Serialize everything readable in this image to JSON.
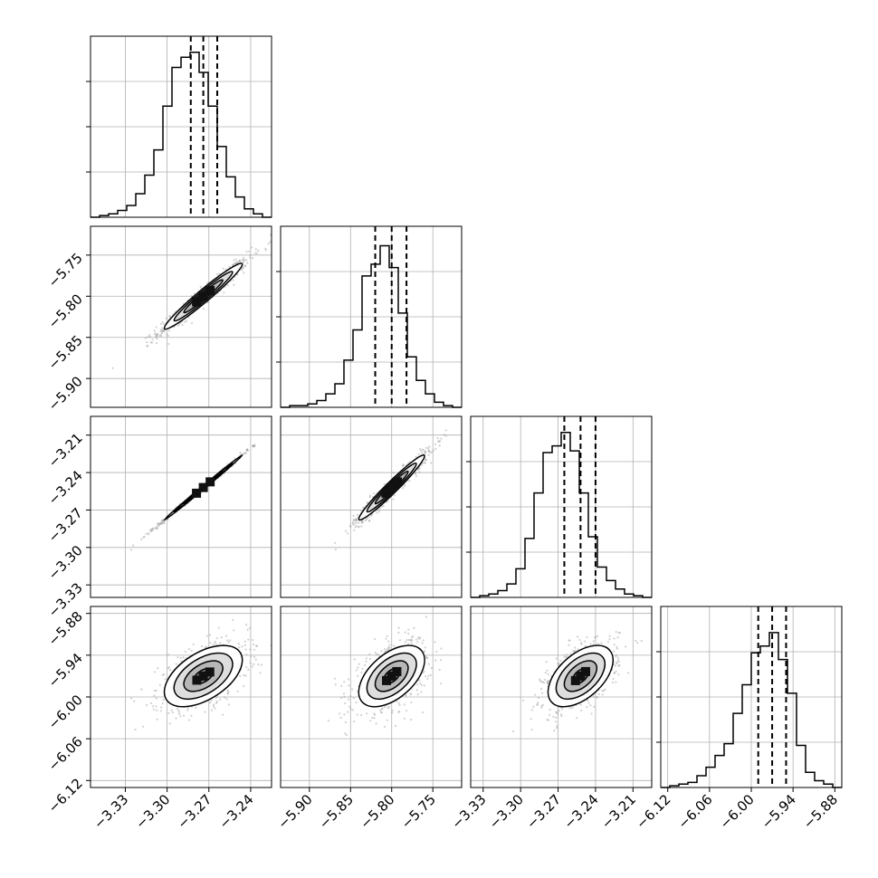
{
  "chart_data": {
    "type": "corner",
    "ylim": [
      0,
      1
    ],
    "parameters": [
      {
        "range": [
          -3.355,
          -3.225
        ],
        "ticks": [
          "−3.33",
          "−3.30",
          "−3.27",
          "−3.24"
        ],
        "tick_values": [
          -3.33,
          -3.3,
          -3.27,
          -3.24
        ],
        "quantiles": [
          -3.283,
          -3.274,
          -3.264
        ],
        "histogram": [
          0.0,
          0.01,
          0.02,
          0.04,
          0.07,
          0.14,
          0.25,
          0.4,
          0.66,
          0.89,
          0.95,
          0.98,
          0.86,
          0.66,
          0.42,
          0.24,
          0.12,
          0.05,
          0.02,
          0.0
        ]
      },
      {
        "range": [
          -5.935,
          -5.715
        ],
        "ticks": [
          "−5.90",
          "−5.85",
          "−5.80",
          "−5.75"
        ],
        "tick_values": [
          -5.9,
          -5.85,
          -5.8,
          -5.75
        ],
        "quantiles": [
          -5.82,
          -5.8,
          -5.782
        ],
        "histogram": [
          0.0,
          0.01,
          0.01,
          0.02,
          0.04,
          0.08,
          0.14,
          0.28,
          0.46,
          0.78,
          0.85,
          0.96,
          0.83,
          0.56,
          0.3,
          0.16,
          0.08,
          0.03,
          0.01,
          0.0
        ]
      },
      {
        "range": [
          -3.34,
          -3.195
        ],
        "ticks": [
          "−3.33",
          "−3.30",
          "−3.27",
          "−3.24",
          "−3.21"
        ],
        "tick_values": [
          -3.33,
          -3.3,
          -3.27,
          -3.24,
          -3.21
        ],
        "quantiles": [
          -3.265,
          -3.252,
          -3.24
        ],
        "histogram": [
          0.0,
          0.01,
          0.02,
          0.04,
          0.08,
          0.17,
          0.35,
          0.62,
          0.86,
          0.9,
          0.98,
          0.87,
          0.62,
          0.36,
          0.18,
          0.1,
          0.05,
          0.02,
          0.01,
          0.0
        ]
      },
      {
        "range": [
          -6.13,
          -5.87
        ],
        "ticks": [
          "−6.12",
          "−6.06",
          "−6.00",
          "−5.94",
          "−5.88"
        ],
        "tick_values": [
          -6.12,
          -6.06,
          -6.0,
          -5.94,
          -5.88
        ],
        "quantiles": [
          -5.99,
          -5.97,
          -5.95
        ],
        "histogram": [
          0.0,
          0.01,
          0.02,
          0.03,
          0.07,
          0.12,
          0.19,
          0.26,
          0.44,
          0.61,
          0.8,
          0.84,
          0.92,
          0.76,
          0.56,
          0.25,
          0.09,
          0.04,
          0.02,
          0.0
        ]
      }
    ],
    "pairs": [
      {
        "row": 1,
        "col": 0,
        "center": [
          -3.274,
          -5.8
        ],
        "sigma": [
          0.014,
          0.02
        ],
        "corr": 0.97
      },
      {
        "row": 2,
        "col": 0,
        "center": [
          -3.274,
          -3.252
        ],
        "sigma": [
          0.014,
          0.013
        ],
        "corr": 0.998
      },
      {
        "row": 2,
        "col": 1,
        "center": [
          -5.8,
          -3.252
        ],
        "sigma": [
          0.02,
          0.013
        ],
        "corr": 0.97
      },
      {
        "row": 3,
        "col": 0,
        "center": [
          -3.274,
          -5.97
        ],
        "sigma": [
          0.014,
          0.022
        ],
        "corr": 0.52
      },
      {
        "row": 3,
        "col": 1,
        "center": [
          -5.8,
          -5.97
        ],
        "sigma": [
          0.02,
          0.022
        ],
        "corr": 0.52
      },
      {
        "row": 3,
        "col": 2,
        "center": [
          -3.252,
          -5.97
        ],
        "sigma": [
          0.013,
          0.022
        ],
        "corr": 0.52
      }
    ],
    "contour_levels_sigma": [
      0.5,
      1.0,
      1.5,
      2.0
    ],
    "grid": true
  }
}
